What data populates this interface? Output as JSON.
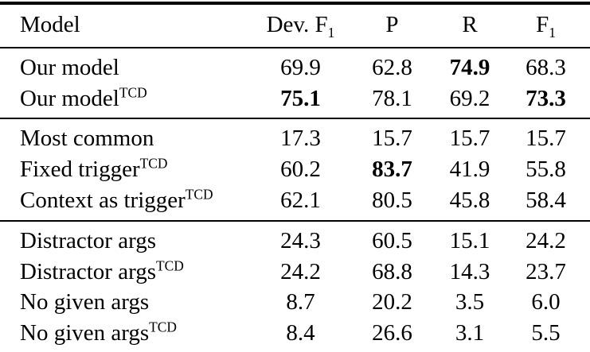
{
  "table": {
    "headers": [
      {
        "text": "Model"
      },
      {
        "text": "Dev. F",
        "sub": "1"
      },
      {
        "text": "P"
      },
      {
        "text": "R"
      },
      {
        "text": "F",
        "sub": "1"
      }
    ],
    "sections": [
      {
        "rows": [
          {
            "model": "Our model",
            "sup": "",
            "values": [
              {
                "v": "69.9",
                "bold": false
              },
              {
                "v": "62.8",
                "bold": false
              },
              {
                "v": "74.9",
                "bold": true
              },
              {
                "v": "68.3",
                "bold": false
              }
            ]
          },
          {
            "model": "Our model",
            "sup": "TCD",
            "values": [
              {
                "v": "75.1",
                "bold": true
              },
              {
                "v": "78.1",
                "bold": false
              },
              {
                "v": "69.2",
                "bold": false
              },
              {
                "v": "73.3",
                "bold": true
              }
            ]
          }
        ]
      },
      {
        "rows": [
          {
            "model": "Most common",
            "sup": "",
            "values": [
              {
                "v": "17.3",
                "bold": false
              },
              {
                "v": "15.7",
                "bold": false
              },
              {
                "v": "15.7",
                "bold": false
              },
              {
                "v": "15.7",
                "bold": false
              }
            ]
          },
          {
            "model": "Fixed trigger",
            "sup": "TCD",
            "values": [
              {
                "v": "60.2",
                "bold": false
              },
              {
                "v": "83.7",
                "bold": true
              },
              {
                "v": "41.9",
                "bold": false
              },
              {
                "v": "55.8",
                "bold": false
              }
            ]
          },
          {
            "model": "Context as trigger",
            "sup": "TCD",
            "values": [
              {
                "v": "62.1",
                "bold": false
              },
              {
                "v": "80.5",
                "bold": false
              },
              {
                "v": "45.8",
                "bold": false
              },
              {
                "v": "58.4",
                "bold": false
              }
            ]
          }
        ]
      },
      {
        "rows": [
          {
            "model": "Distractor args",
            "sup": "",
            "values": [
              {
                "v": "24.3",
                "bold": false
              },
              {
                "v": "60.5",
                "bold": false
              },
              {
                "v": "15.1",
                "bold": false
              },
              {
                "v": "24.2",
                "bold": false
              }
            ]
          },
          {
            "model": "Distractor args",
            "sup": "TCD",
            "values": [
              {
                "v": "24.2",
                "bold": false
              },
              {
                "v": "68.8",
                "bold": false
              },
              {
                "v": "14.3",
                "bold": false
              },
              {
                "v": "23.7",
                "bold": false
              }
            ]
          },
          {
            "model": "No given args",
            "sup": "",
            "values": [
              {
                "v": "8.7",
                "bold": false
              },
              {
                "v": "20.2",
                "bold": false
              },
              {
                "v": "3.5",
                "bold": false
              },
              {
                "v": "6.0",
                "bold": false
              }
            ]
          },
          {
            "model": "No given args",
            "sup": "TCD",
            "values": [
              {
                "v": "8.4",
                "bold": false
              },
              {
                "v": "26.6",
                "bold": false
              },
              {
                "v": "3.1",
                "bold": false
              },
              {
                "v": "5.5",
                "bold": false
              }
            ]
          }
        ]
      }
    ]
  }
}
